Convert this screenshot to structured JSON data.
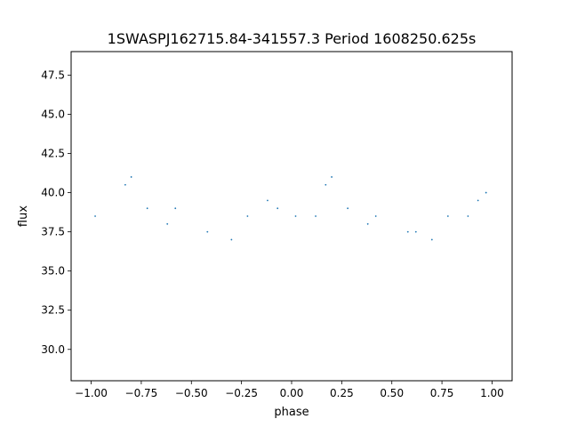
{
  "chart_data": {
    "type": "scatter",
    "title": "1SWASPJ162715.84-341557.3 Period 1608250.625s",
    "xlabel": "phase",
    "ylabel": "flux",
    "xlim": [
      -1.1,
      1.1
    ],
    "ylim": [
      28,
      49
    ],
    "x_ticks": [
      -1.0,
      -0.75,
      -0.5,
      -0.25,
      0.0,
      0.25,
      0.5,
      0.75,
      1.0
    ],
    "x_tick_labels": [
      "−1.00",
      "−0.75",
      "−0.50",
      "−0.25",
      "0.00",
      "0.25",
      "0.50",
      "0.75",
      "1.00"
    ],
    "y_ticks": [
      30.0,
      32.5,
      35.0,
      37.5,
      40.0,
      42.5,
      45.0,
      47.5
    ],
    "y_tick_labels": [
      "30.0",
      "32.5",
      "35.0",
      "37.5",
      "40.0",
      "42.5",
      "45.0",
      "47.5"
    ],
    "grid": false,
    "marker_color": "#1f77b4",
    "series": [
      {
        "x": [
          -0.98,
          -0.83,
          -0.8,
          -0.72,
          -0.62,
          -0.58,
          -0.42,
          -0.3,
          -0.22,
          -0.12,
          -0.07,
          0.02,
          0.12,
          0.17,
          0.2,
          0.28,
          0.38,
          0.42,
          0.58,
          0.62,
          0.7,
          0.78,
          0.88,
          0.93,
          0.97
        ],
        "y": [
          38.5,
          40.5,
          41,
          39,
          38,
          39,
          37.5,
          37,
          38.5,
          39.5,
          39,
          38.5,
          38.5,
          40.5,
          41,
          39,
          38,
          38.5,
          37.5,
          37.5,
          37,
          38.5,
          38.5,
          39.5,
          40
        ]
      }
    ]
  }
}
